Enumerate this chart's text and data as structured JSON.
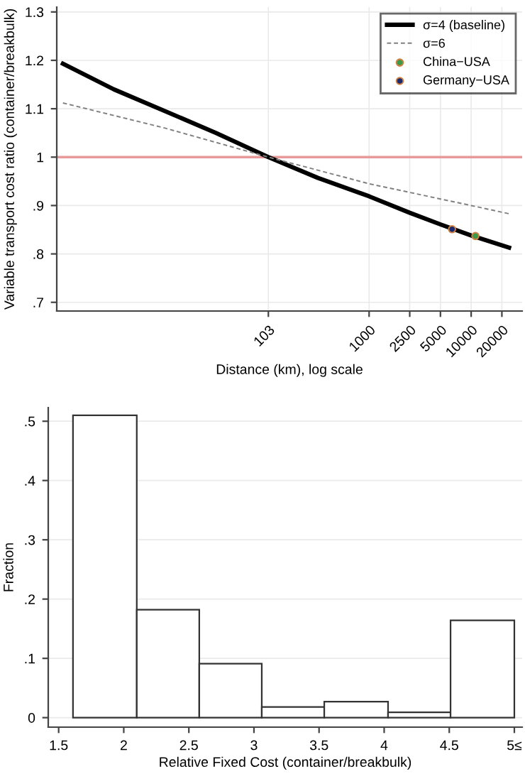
{
  "chart_data": [
    {
      "type": "line",
      "xlabel": "Distance (km), log scale",
      "ylabel": "Variable transport cost ratio (container/breakbulk)",
      "log": "x",
      "grid": true,
      "legend": "top right",
      "xlim": [
        0.87,
        31600
      ],
      "ylim": [
        0.682,
        1.31
      ],
      "xticks": [
        103,
        1000,
        2500,
        5000,
        10000,
        20000
      ],
      "yticks": [
        {
          "value": 0.7,
          "label": ".7"
        },
        {
          "value": 0.8,
          "label": ".8"
        },
        {
          "value": 0.9,
          "label": ".9"
        },
        {
          "value": 1,
          "label": "1"
        },
        {
          "value": 1.1,
          "label": "1.1"
        },
        {
          "value": 1.2,
          "label": "1.2"
        },
        {
          "value": 1.3,
          "label": "1.3"
        }
      ],
      "ref_lines": [
        {
          "axis": "y",
          "value": 1,
          "color": "#e89a9a"
        }
      ],
      "series": [
        {
          "name": "σ=4 (baseline)",
          "type": "line",
          "color": "#000000",
          "line_style": "solid",
          "x": [
            1,
            3.16,
            10,
            31.6,
            103,
            316,
            1000,
            2500,
            5000,
            10000,
            23500
          ],
          "values": [
            1.193,
            1.14,
            1.095,
            1.05,
            1.0,
            0.957,
            0.919,
            0.885,
            0.861,
            0.838,
            0.813
          ]
        },
        {
          "name": "σ=6",
          "type": "line",
          "color": "#808080",
          "line_style": "dashed",
          "x": [
            1,
            10,
            103,
            1000,
            10000,
            23500
          ],
          "values": [
            1.112,
            1.06,
            1.0,
            0.945,
            0.9,
            0.883
          ]
        },
        {
          "name": "China−USA",
          "type": "scatter",
          "color": "#3a9a4a",
          "marker": "circle",
          "x": [
            11000
          ],
          "values": [
            0.837
          ]
        },
        {
          "name": "Germany−USA",
          "type": "scatter",
          "color": "#1a2a6c",
          "marker": "circle",
          "x": [
            6500
          ],
          "values": [
            0.851
          ]
        }
      ]
    },
    {
      "type": "histogram",
      "xlabel": "Relative Fixed Cost (container/breakbulk)",
      "ylabel": "Fraction",
      "grid": "y",
      "color": "#ffffff",
      "bins": [
        1.61,
        2.1,
        2.58,
        3.06,
        3.54,
        4.03,
        4.51,
        5.0
      ],
      "values": [
        0.51,
        0.182,
        0.091,
        0.018,
        0.027,
        0.009,
        0.164
      ],
      "xlim": [
        1.42,
        5.06
      ],
      "ylim": [
        -0.016,
        0.523
      ],
      "xticks": [
        1.5,
        2,
        2.5,
        3,
        3.5,
        4,
        4.5,
        {
          "value": 5,
          "label": "5≤"
        }
      ],
      "yticks": [
        {
          "value": 0,
          "label": "0"
        },
        {
          "value": 0.1,
          "label": ".1"
        },
        {
          "value": 0.2,
          "label": ".2"
        },
        {
          "value": 0.3,
          "label": ".3"
        },
        {
          "value": 0.4,
          "label": ".4"
        },
        {
          "value": 0.5,
          "label": ".5"
        }
      ]
    }
  ]
}
